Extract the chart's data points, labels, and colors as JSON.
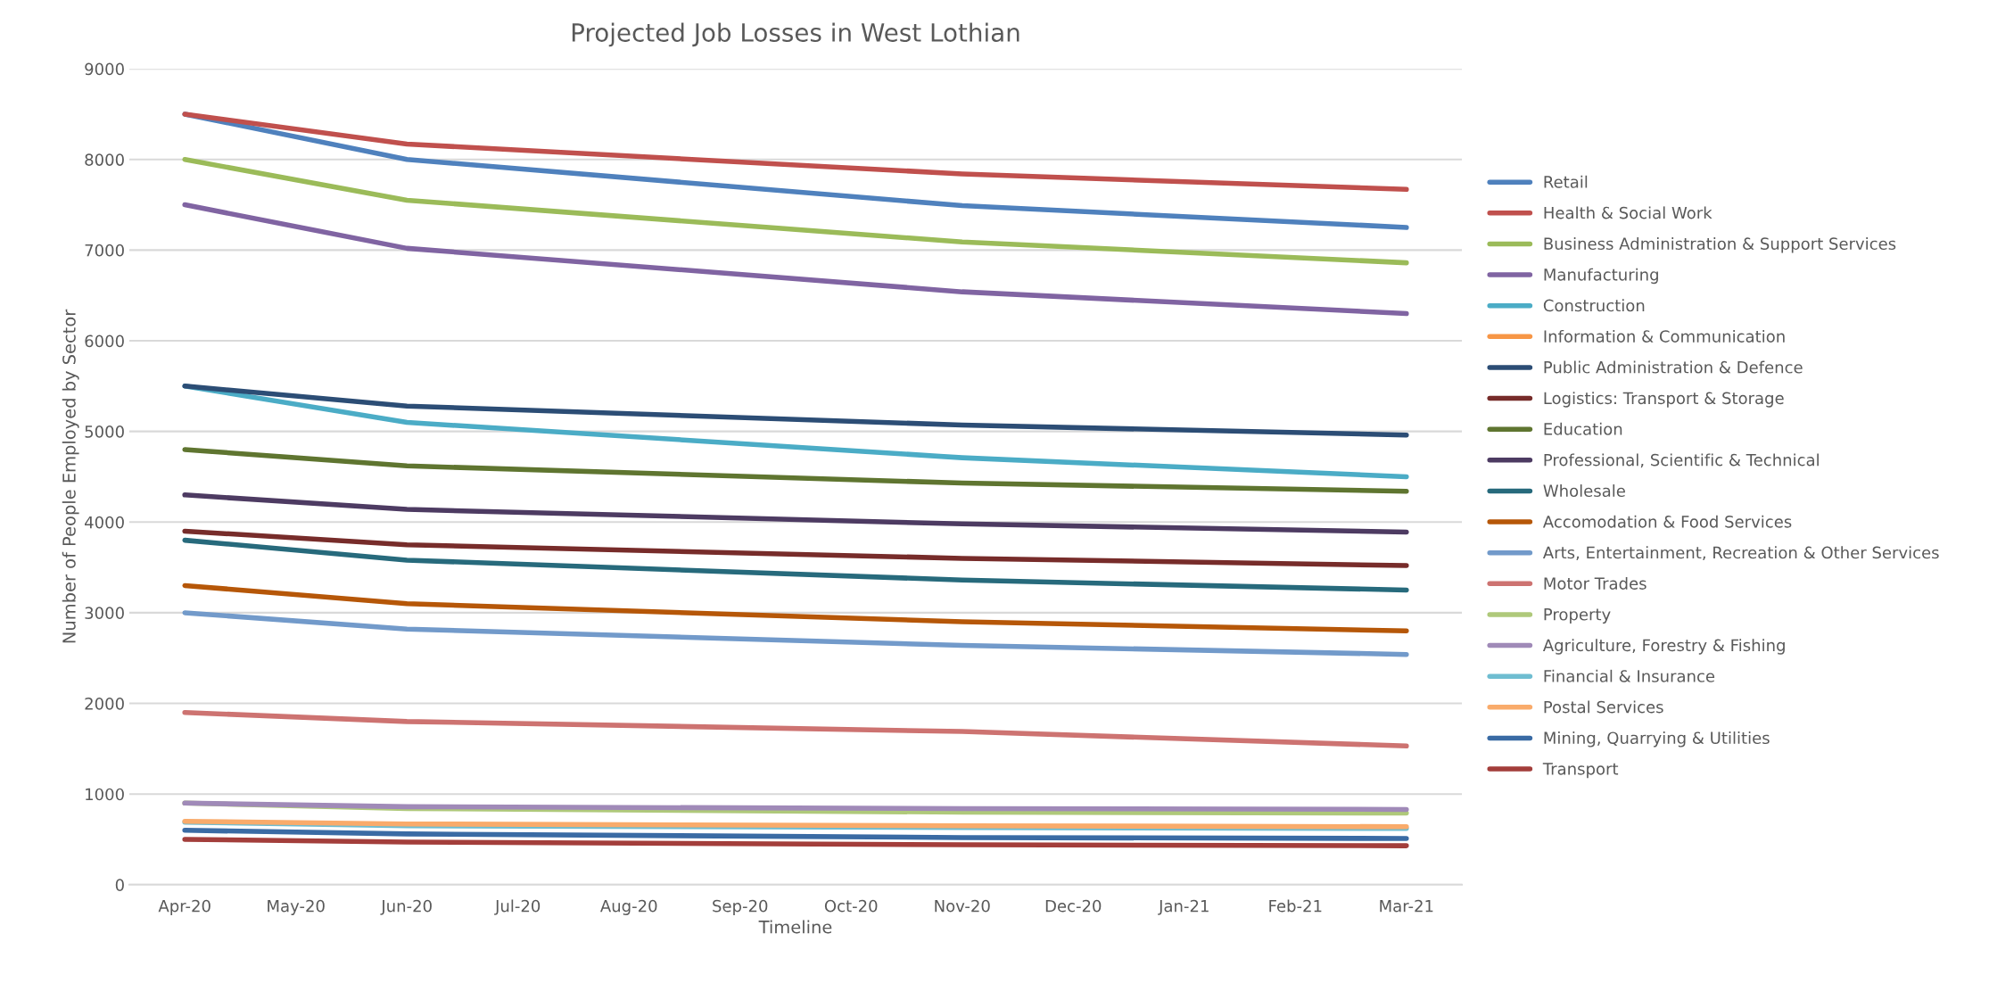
{
  "chart_data": {
    "type": "line",
    "title": "Projected Job Losses in West Lothian",
    "xlabel": "Timeline",
    "ylabel": "Number of People Employed by Sector",
    "categories": [
      "Apr-20",
      "May-20",
      "Jun-20",
      "Jul-20",
      "Aug-20",
      "Sep-20",
      "Oct-20",
      "Nov-20",
      "Dec-20",
      "Jan-21",
      "Feb-21",
      "Mar-21"
    ],
    "ylim": [
      0,
      9000
    ],
    "yticks": [
      0,
      1000,
      2000,
      3000,
      4000,
      5000,
      6000,
      7000,
      8000,
      9000
    ],
    "grid": "y",
    "legend": "right",
    "marker": "none",
    "line_style": "solid",
    "series": [
      {
        "name": "Retail",
        "color": "#4f81bd",
        "values": [
          8500,
          null,
          8000,
          null,
          null,
          null,
          null,
          7490,
          null,
          null,
          null,
          7250
        ]
      },
      {
        "name": "Health & Social Work",
        "color": "#c0504d",
        "values": [
          8500,
          null,
          8170,
          null,
          null,
          null,
          null,
          7840,
          null,
          null,
          null,
          7670
        ]
      },
      {
        "name": "Business Administration & Support Services",
        "color": "#9bbb59",
        "values": [
          8000,
          null,
          7550,
          null,
          null,
          null,
          null,
          7090,
          null,
          null,
          null,
          6860
        ]
      },
      {
        "name": "Manufacturing",
        "color": "#8064a2",
        "values": [
          7500,
          null,
          7020,
          null,
          null,
          null,
          null,
          6540,
          null,
          null,
          null,
          6300
        ]
      },
      {
        "name": "Construction",
        "color": "#4bacc6",
        "values": [
          5500,
          null,
          5100,
          null,
          null,
          null,
          null,
          4710,
          null,
          null,
          null,
          4500
        ]
      },
      {
        "name": "Information & Communication",
        "color": "#f79646",
        "values": [
          null,
          null,
          null,
          null,
          null,
          null,
          null,
          null,
          null,
          null,
          null,
          null
        ]
      },
      {
        "name": "Public Administration & Defence",
        "color": "#2c4d75",
        "values": [
          5500,
          null,
          5280,
          null,
          null,
          null,
          null,
          5070,
          null,
          null,
          null,
          4960
        ]
      },
      {
        "name": "Logistics: Transport & Storage",
        "color": "#772c2a",
        "values": [
          3900,
          null,
          3750,
          null,
          null,
          null,
          null,
          3600,
          null,
          null,
          null,
          3520
        ]
      },
      {
        "name": "Education",
        "color": "#5f7530",
        "values": [
          4800,
          null,
          4620,
          null,
          null,
          null,
          null,
          4430,
          null,
          null,
          null,
          4340
        ]
      },
      {
        "name": "Professional, Scientific & Technical",
        "color": "#4d3b62",
        "values": [
          4300,
          null,
          4140,
          null,
          null,
          null,
          null,
          3980,
          null,
          null,
          null,
          3890
        ]
      },
      {
        "name": "Wholesale",
        "color": "#276a7c",
        "values": [
          3800,
          null,
          3580,
          null,
          null,
          null,
          null,
          3360,
          null,
          null,
          null,
          3250
        ]
      },
      {
        "name": "Accomodation & Food Services",
        "color": "#b65708",
        "values": [
          3300,
          null,
          3100,
          null,
          null,
          null,
          null,
          2900,
          null,
          null,
          null,
          2800
        ]
      },
      {
        "name": "Arts, Entertainment, Recreation & Other Services",
        "color": "#729aca",
        "values": [
          3000,
          null,
          2820,
          null,
          null,
          null,
          null,
          2640,
          null,
          null,
          null,
          2540
        ]
      },
      {
        "name": "Motor Trades",
        "color": "#cd7371",
        "values": [
          1900,
          null,
          1800,
          null,
          null,
          null,
          null,
          1690,
          null,
          null,
          null,
          1530
        ]
      },
      {
        "name": "Property",
        "color": "#afc97a",
        "values": [
          900,
          null,
          840,
          null,
          null,
          null,
          null,
          800,
          null,
          null,
          null,
          790
        ]
      },
      {
        "name": "Agriculture, Forestry & Fishing",
        "color": "#a08ab8",
        "values": [
          900,
          null,
          860,
          null,
          null,
          null,
          null,
          840,
          null,
          null,
          null,
          830
        ]
      },
      {
        "name": "Financial & Insurance",
        "color": "#6fbdd1",
        "values": [
          690,
          null,
          650,
          null,
          null,
          null,
          null,
          630,
          null,
          null,
          null,
          620
        ]
      },
      {
        "name": "Postal Services",
        "color": "#f9ab6b",
        "values": [
          700,
          null,
          670,
          null,
          null,
          null,
          null,
          650,
          null,
          null,
          null,
          640
        ]
      },
      {
        "name": "Mining, Quarrying & Utilities",
        "color": "#3a6ba4",
        "values": [
          600,
          null,
          560,
          null,
          null,
          null,
          null,
          520,
          null,
          null,
          null,
          510
        ]
      },
      {
        "name": "Transport",
        "color": "#a33e3b",
        "values": [
          500,
          null,
          470,
          null,
          null,
          null,
          null,
          440,
          null,
          null,
          null,
          430
        ]
      }
    ]
  }
}
